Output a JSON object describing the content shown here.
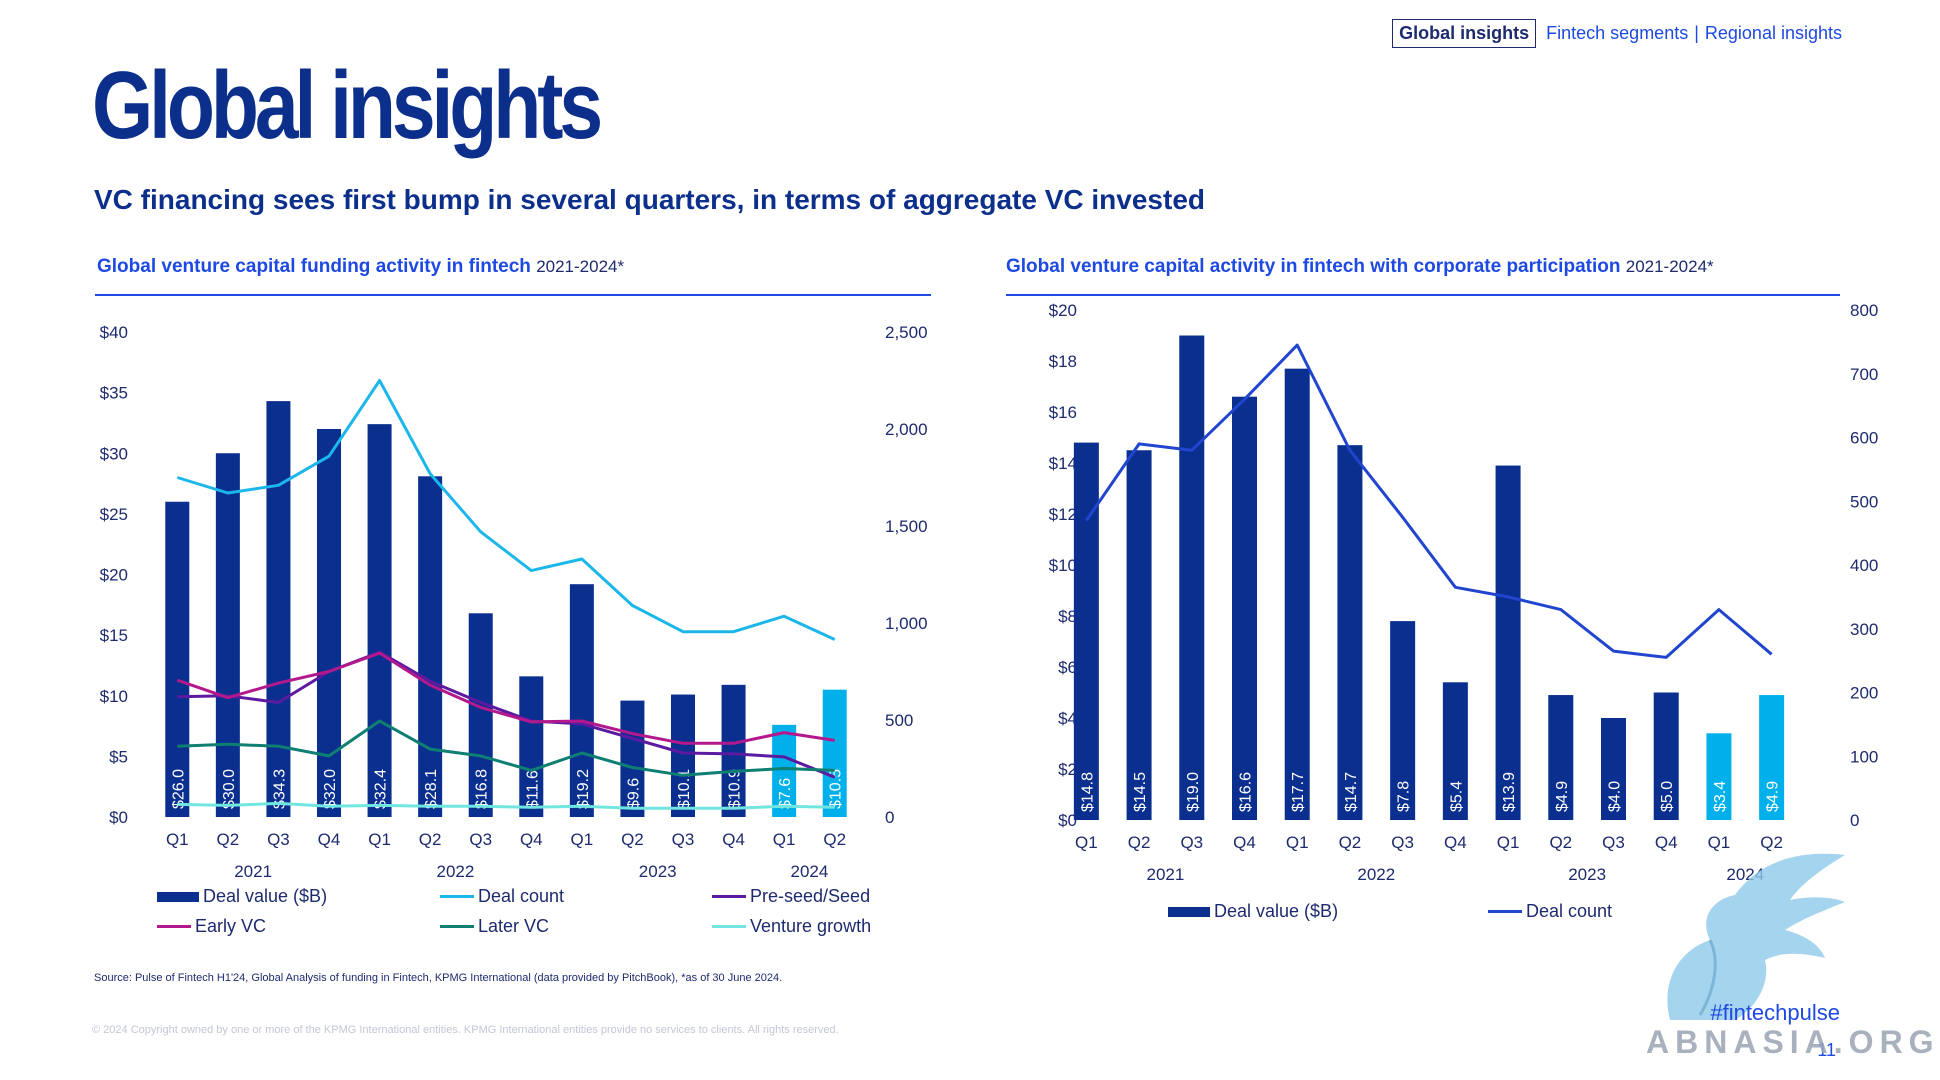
{
  "nav": {
    "active": "Global insights",
    "link1": "Fintech segments",
    "sep": "|",
    "link2": "Regional insights"
  },
  "title": "Global insights",
  "subtitle": "VC financing sees first bump in several quarters, in terms of aggregate VC invested",
  "left_chart": {
    "title": "Global venture capital funding activity in fintech",
    "years_note": "2021-2024*"
  },
  "right_chart": {
    "title": "Global venture capital activity in fintech with corporate participation",
    "years_note": "2021-2024*"
  },
  "colors": {
    "dark_blue": "#0a2f8f",
    "light_blue": "#00b0ea",
    "count_line_left": "#1cb7ea",
    "count_line_right": "#2145cf",
    "preseed": "#5b1aa0",
    "early": "#b3198c",
    "later": "#0e7f72",
    "growth": "#71e6e0"
  },
  "chart_data": [
    {
      "type": "bar",
      "categories": [
        "Q1",
        "Q2",
        "Q3",
        "Q4",
        "Q1",
        "Q2",
        "Q3",
        "Q4",
        "Q1",
        "Q2",
        "Q3",
        "Q4",
        "Q1",
        "Q2"
      ],
      "years": [
        "2021",
        "2022",
        "2023",
        "2024"
      ],
      "y_left_ticks": [
        "$0",
        "$5",
        "$10",
        "$15",
        "$20",
        "$25",
        "$30",
        "$35",
        "$40"
      ],
      "y_right_ticks": [
        "0",
        "500",
        "1,000",
        "1,500",
        "2,000",
        "2,500"
      ],
      "ylim_left": [
        0,
        40
      ],
      "ylim_right": [
        0,
        2500
      ],
      "series": [
        {
          "name": "Deal value ($B)",
          "kind": "bar",
          "axis": "left",
          "values": [
            26.0,
            30.0,
            34.3,
            32.0,
            32.4,
            28.1,
            16.8,
            11.6,
            19.2,
            9.6,
            10.1,
            10.9,
            7.6,
            10.5
          ],
          "labels": [
            "$26.0",
            "$30.0",
            "$34.3",
            "$32.0",
            "$32.4",
            "$28.1",
            "$16.8",
            "$11.6",
            "$19.2",
            "$9.6",
            "$10.1",
            "$10.9",
            "$7.6",
            "$10.5"
          ],
          "highlight_from": 12
        },
        {
          "name": "Deal count",
          "kind": "line",
          "axis": "right",
          "values": [
            1750,
            1670,
            1710,
            1860,
            2250,
            1770,
            1470,
            1270,
            1330,
            1090,
            955,
            955,
            1035,
            915
          ]
        },
        {
          "name": "Pre-seed/Seed",
          "kind": "line",
          "axis": "right",
          "values": [
            620,
            625,
            590,
            750,
            850,
            700,
            590,
            495,
            480,
            405,
            330,
            325,
            310,
            205
          ]
        },
        {
          "name": "Early VC",
          "kind": "line",
          "axis": "right",
          "values": [
            705,
            615,
            690,
            750,
            845,
            680,
            565,
            490,
            495,
            430,
            380,
            380,
            435,
            395
          ]
        },
        {
          "name": "Later VC",
          "kind": "line",
          "axis": "right",
          "values": [
            365,
            375,
            365,
            315,
            495,
            350,
            315,
            240,
            330,
            255,
            215,
            235,
            250,
            240
          ]
        },
        {
          "name": "Venture growth",
          "kind": "line",
          "axis": "right",
          "values": [
            65,
            60,
            70,
            55,
            60,
            55,
            55,
            50,
            55,
            45,
            45,
            45,
            55,
            50
          ]
        }
      ]
    },
    {
      "type": "bar",
      "categories": [
        "Q1",
        "Q2",
        "Q3",
        "Q4",
        "Q1",
        "Q2",
        "Q3",
        "Q4",
        "Q1",
        "Q2",
        "Q3",
        "Q4",
        "Q1",
        "Q2"
      ],
      "years": [
        "2021",
        "2022",
        "2023",
        "2024"
      ],
      "y_left_ticks": [
        "$0",
        "$2",
        "$4",
        "$6",
        "$8",
        "$10",
        "$12",
        "$14",
        "$16",
        "$18",
        "$20"
      ],
      "y_right_ticks": [
        "0",
        "100",
        "200",
        "300",
        "400",
        "500",
        "600",
        "700",
        "800"
      ],
      "ylim_left": [
        0,
        20
      ],
      "ylim_right": [
        0,
        800
      ],
      "series": [
        {
          "name": "Deal value ($B)",
          "kind": "bar",
          "axis": "left",
          "values": [
            14.8,
            14.5,
            19.0,
            16.6,
            17.7,
            14.7,
            7.8,
            5.4,
            13.9,
            4.9,
            4.0,
            5.0,
            3.4,
            4.9
          ],
          "labels": [
            "$14.8",
            "$14.5",
            "$19.0",
            "$16.6",
            "$17.7",
            "$14.7",
            "$7.8",
            "$5.4",
            "$13.9",
            "$4.9",
            "$4.0",
            "$5.0",
            "$3.4",
            "$4.9"
          ],
          "highlight_from": 12
        },
        {
          "name": "Deal count",
          "kind": "line",
          "axis": "right",
          "values": [
            470,
            590,
            580,
            660,
            745,
            580,
            475,
            365,
            350,
            330,
            265,
            255,
            330,
            260
          ]
        }
      ]
    }
  ],
  "legend_left": [
    "Deal value ($B)",
    "Deal count",
    "Pre-seed/Seed",
    "Early VC",
    "Later VC",
    "Venture growth"
  ],
  "legend_right": [
    "Deal value ($B)",
    "Deal count"
  ],
  "source": "Source: Pulse of Fintech H1'24, Global Analysis of funding in Fintech, KPMG International (data provided by PitchBook), *as of 30 June 2024.",
  "copyright": "© 2024 Copyright owned by one or more of the KPMG International entities. KPMG International entities provide no services to clients. All rights reserved.",
  "hashtag": "#fintechpulse",
  "page_number": "11",
  "watermark": "ABNASIA.ORG"
}
